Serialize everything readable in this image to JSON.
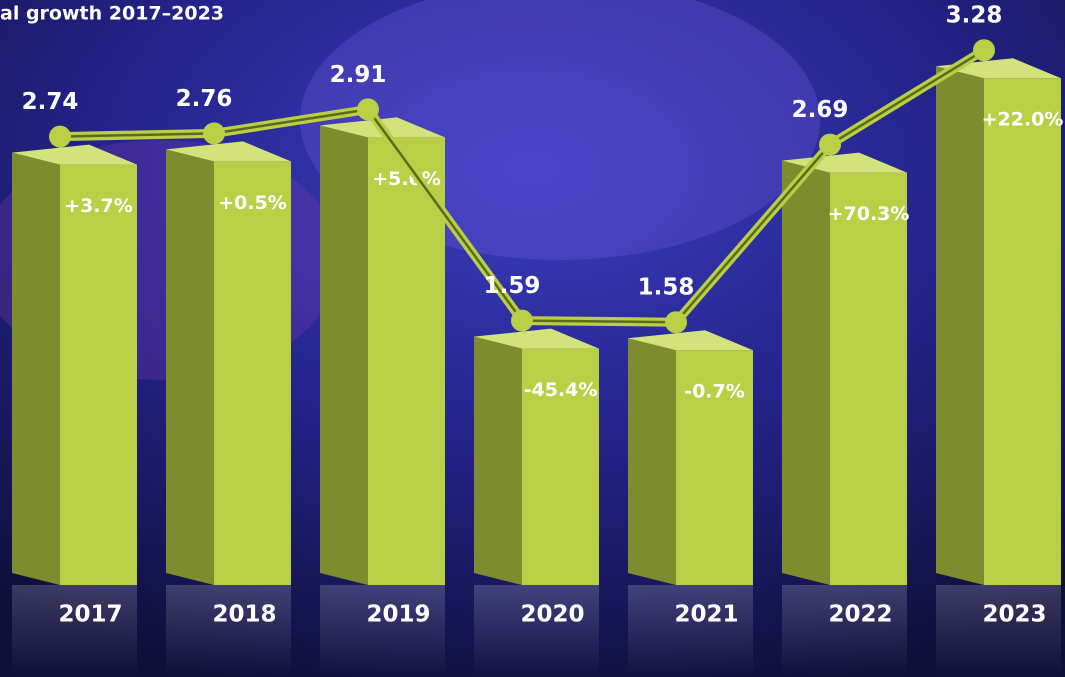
{
  "chart_data": {
    "type": "bar-line",
    "title": "al growth 2017–2023",
    "categories": [
      "2017",
      "2018",
      "2019",
      "2020",
      "2021",
      "2022",
      "2023"
    ],
    "values": [
      2.74,
      2.76,
      2.91,
      1.59,
      1.58,
      2.69,
      3.28
    ],
    "growth": {
      "values": [
        3.7,
        0.5,
        5.6,
        -45.4,
        -0.7,
        70.3,
        22.0
      ],
      "value_labels": [
        "+3.7%",
        "+0.5%",
        "+5.6%",
        "-45.4%",
        "-0.7%",
        "+70.3%",
        "+22.0%"
      ]
    },
    "color": "#b9cf45",
    "ylim": [
      0,
      3.4
    ]
  }
}
